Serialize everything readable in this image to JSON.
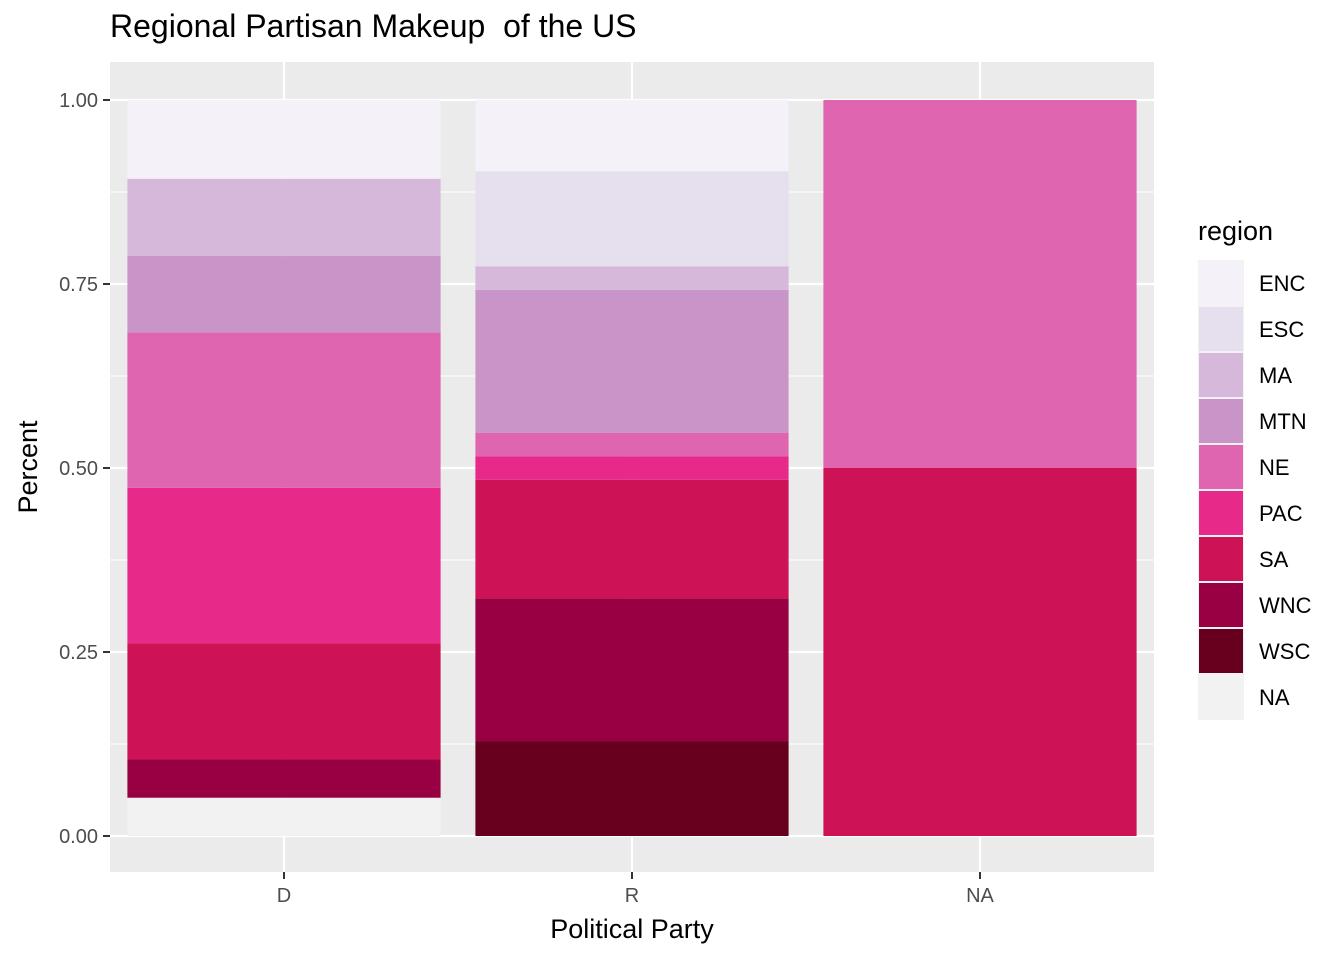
{
  "chart_data": {
    "type": "bar",
    "stacked": true,
    "title": "Regional Partisan Makeup  of the US",
    "xlabel": "Political Party",
    "ylabel": "Percent",
    "categories": [
      "D",
      "R",
      "NA"
    ],
    "ylim": [
      0,
      1.05
    ],
    "y_ticks": [
      0.0,
      0.25,
      0.5,
      0.75,
      1.0
    ],
    "y_tick_labels": [
      "0.00",
      "0.25",
      "0.50",
      "0.75",
      "1.00"
    ],
    "grid": true,
    "legend_title": "region",
    "legend_position": "right",
    "series": [
      {
        "name": "ENC",
        "color": "#f4f2f8",
        "values": [
          0.107,
          0.097,
          0.0
        ]
      },
      {
        "name": "ESC",
        "color": "#e6e0ee",
        "values": [
          0.0,
          0.129,
          0.0
        ]
      },
      {
        "name": "MA",
        "color": "#d5b8da",
        "values": [
          0.105,
          0.032,
          0.0
        ]
      },
      {
        "name": "MTN",
        "color": "#c994c7",
        "values": [
          0.104,
          0.194,
          0.0
        ]
      },
      {
        "name": "NE",
        "color": "#df65b0",
        "values": [
          0.211,
          0.032,
          0.5
        ]
      },
      {
        "name": "PAC",
        "color": "#e7298a",
        "values": [
          0.211,
          0.032,
          0.0
        ]
      },
      {
        "name": "SA",
        "color": "#ce1256",
        "values": [
          0.158,
          0.161,
          0.5
        ]
      },
      {
        "name": "WNC",
        "color": "#980043",
        "values": [
          0.052,
          0.194,
          0.0
        ]
      },
      {
        "name": "WSC",
        "color": "#67001f",
        "values": [
          0.0,
          0.129,
          0.0
        ]
      },
      {
        "name": "NA",
        "color": "#f2f2f2",
        "values": [
          0.052,
          0.0,
          0.0
        ]
      }
    ]
  }
}
